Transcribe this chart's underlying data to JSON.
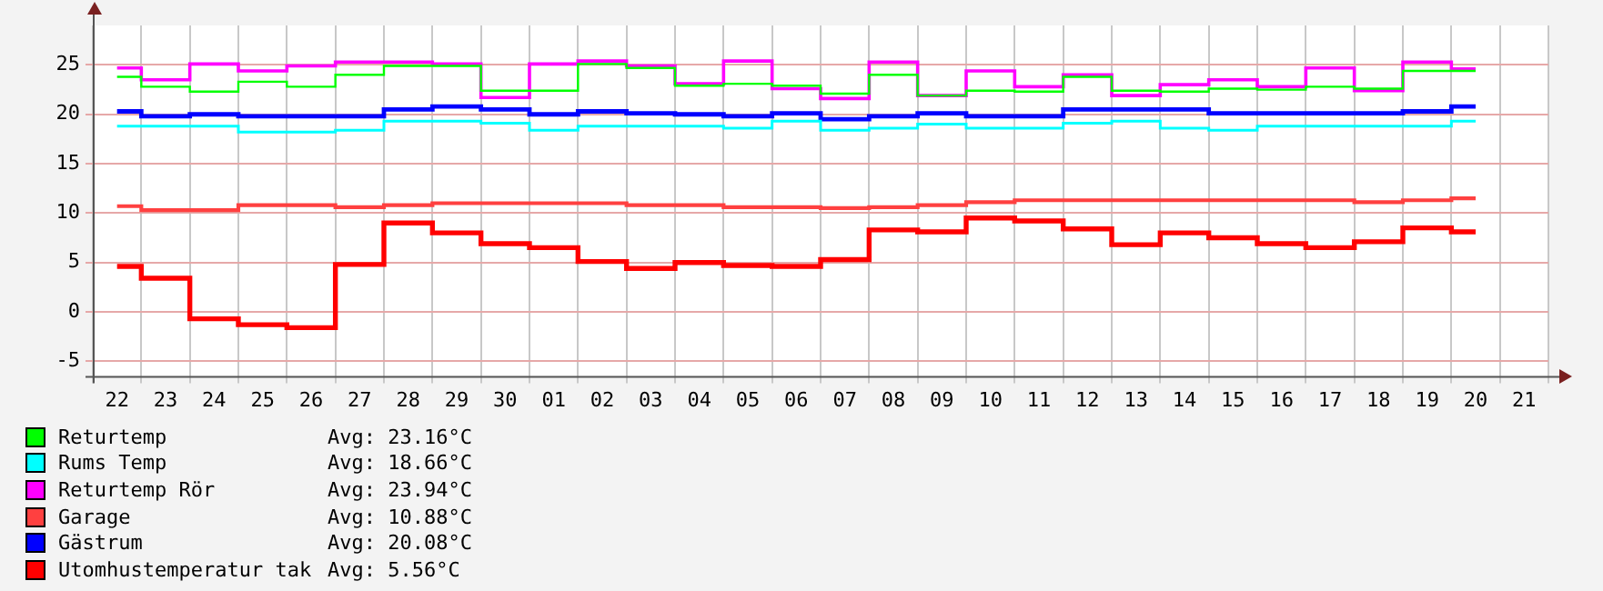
{
  "chart_data": {
    "type": "step",
    "categories": [
      "22",
      "23",
      "24",
      "25",
      "26",
      "27",
      "28",
      "29",
      "30",
      "01",
      "02",
      "03",
      "04",
      "05",
      "06",
      "07",
      "08",
      "09",
      "10",
      "11",
      "12",
      "13",
      "14",
      "15",
      "16",
      "17",
      "18",
      "19",
      "20",
      "21"
    ],
    "ylim": [
      -6.5,
      29
    ],
    "yticks": [
      -5,
      0,
      5,
      10,
      15,
      20,
      25
    ],
    "grid": true,
    "legend": "bottom",
    "series": [
      {
        "name": "Returtemp",
        "color": "#00ff00",
        "values": [
          23.8,
          22.8,
          22.3,
          23.3,
          22.8,
          24.0,
          24.9,
          24.9,
          22.4,
          22.4,
          25.1,
          24.7,
          22.9,
          23.1,
          22.9,
          22.1,
          24.0,
          21.9,
          22.4,
          22.3,
          23.8,
          22.4,
          22.3,
          22.6,
          22.5,
          22.8,
          22.6,
          24.4,
          24.4,
          null
        ]
      },
      {
        "name": "Rums Temp",
        "color": "#00ffff",
        "values": [
          18.8,
          18.8,
          18.8,
          18.2,
          18.2,
          18.4,
          19.3,
          19.3,
          19.1,
          18.4,
          18.8,
          18.8,
          18.8,
          18.6,
          19.3,
          18.4,
          18.6,
          19.0,
          18.6,
          18.6,
          19.1,
          19.3,
          18.6,
          18.4,
          18.8,
          18.8,
          18.8,
          18.8,
          19.3,
          null
        ]
      },
      {
        "name": "Returtemp Rör",
        "color": "#ff00ff",
        "values": [
          24.7,
          23.5,
          25.1,
          24.4,
          24.9,
          25.3,
          25.3,
          25.1,
          21.7,
          25.1,
          25.4,
          24.9,
          23.1,
          25.4,
          22.6,
          21.6,
          25.3,
          21.9,
          24.4,
          22.8,
          24.0,
          21.9,
          23.0,
          23.5,
          22.8,
          24.7,
          22.4,
          25.3,
          24.6,
          null
        ]
      },
      {
        "name": "Garage",
        "color": "#ff4040",
        "values": [
          10.7,
          10.3,
          10.3,
          10.8,
          10.8,
          10.6,
          10.8,
          11.0,
          11.0,
          11.0,
          11.0,
          10.8,
          10.8,
          10.6,
          10.6,
          10.5,
          10.6,
          10.8,
          11.1,
          11.3,
          11.3,
          11.3,
          11.3,
          11.3,
          11.3,
          11.3,
          11.1,
          11.3,
          11.5,
          null
        ]
      },
      {
        "name": "Gästrum",
        "color": "#0000ff",
        "values": [
          20.3,
          19.8,
          20.0,
          19.8,
          19.8,
          19.8,
          20.5,
          20.8,
          20.5,
          20.0,
          20.3,
          20.1,
          20.0,
          19.8,
          20.1,
          19.5,
          19.8,
          20.1,
          19.8,
          19.8,
          20.5,
          20.5,
          20.5,
          20.1,
          20.1,
          20.1,
          20.1,
          20.3,
          20.8,
          null
        ]
      },
      {
        "name": "Utomhustemperatur tak",
        "color": "#ff0000",
        "values": [
          4.6,
          3.4,
          -0.7,
          -1.3,
          -1.6,
          4.8,
          9.0,
          8.0,
          6.9,
          6.5,
          5.1,
          4.4,
          5.0,
          4.7,
          4.6,
          5.3,
          8.3,
          8.1,
          9.5,
          9.2,
          8.4,
          6.8,
          8.0,
          7.5,
          6.9,
          6.5,
          7.1,
          8.5,
          8.1,
          null
        ]
      }
    ],
    "annotations": [
      "Avg: 23.16°C",
      "Avg: 18.66°C",
      "Avg: 23.94°C",
      "Avg: 10.88°C",
      "Avg: 20.08°C",
      "Avg: 5.56°C"
    ]
  }
}
